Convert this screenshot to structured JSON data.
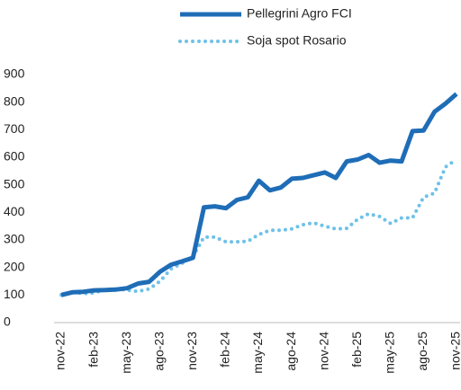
{
  "chart_data": {
    "type": "line",
    "categories": [
      "nov-22",
      null,
      null,
      "feb-23",
      null,
      null,
      "may-23",
      null,
      null,
      "ago-23",
      null,
      null,
      "nov-23",
      null,
      null,
      "feb-24",
      null,
      null,
      "may-24",
      null,
      null,
      "ago-24",
      null,
      null,
      "nov-24",
      null,
      null,
      "feb-25",
      null,
      null,
      "may-25",
      null,
      null,
      "ago-25",
      null,
      null,
      "nov-25"
    ],
    "series": [
      {
        "name": "Pellegrini Agro FCI",
        "color": "#1f6db7",
        "style": "solid",
        "values": [
          100,
          110,
          112,
          117,
          118,
          120,
          125,
          142,
          148,
          185,
          210,
          222,
          235,
          418,
          422,
          415,
          445,
          455,
          515,
          480,
          490,
          522,
          525,
          535,
          545,
          525,
          585,
          592,
          608,
          580,
          588,
          585,
          695,
          697,
          765,
          795,
          830
        ]
      },
      {
        "name": "Soja spot Rosario",
        "color": "#6ec1e8",
        "style": "dotted",
        "values": [
          100,
          112,
          105,
          108,
          120,
          122,
          118,
          113,
          122,
          150,
          195,
          215,
          240,
          310,
          310,
          293,
          293,
          295,
          320,
          335,
          335,
          340,
          355,
          362,
          350,
          340,
          342,
          375,
          395,
          385,
          360,
          380,
          380,
          455,
          470,
          565,
          592
        ]
      }
    ],
    "ylim": [
      0,
      900
    ],
    "yticks": [
      0,
      100,
      200,
      300,
      400,
      500,
      600,
      700,
      800,
      900
    ],
    "grid": false,
    "legend": "top"
  }
}
